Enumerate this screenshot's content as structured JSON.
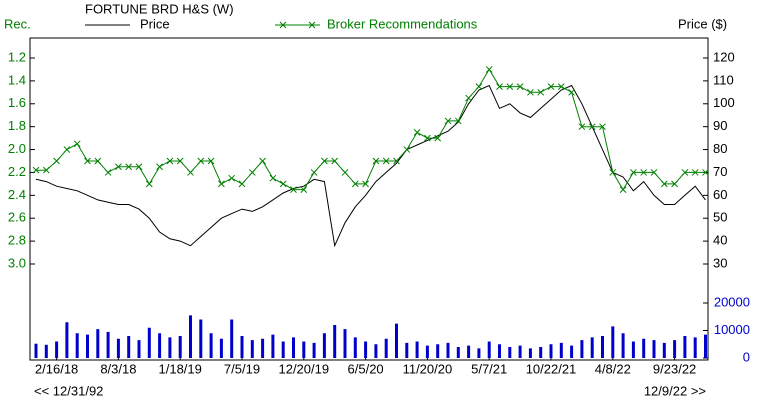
{
  "chart_data": [
    {
      "type": "line",
      "title": "FORTUNE BRD H&S (W)",
      "y_label": "Rec.",
      "y2_label": "Price ($)",
      "categories": [
        null,
        null,
        "2/16/18",
        null,
        null,
        null,
        null,
        null,
        "8/3/18",
        null,
        null,
        null,
        null,
        null,
        "1/18/19",
        null,
        null,
        null,
        null,
        null,
        "7/5/19",
        null,
        null,
        null,
        null,
        null,
        "12/20/19",
        null,
        null,
        null,
        null,
        null,
        "6/5/20",
        null,
        null,
        null,
        null,
        null,
        "11/20/20",
        null,
        null,
        null,
        null,
        null,
        "5/7/21",
        null,
        null,
        null,
        null,
        null,
        "10/22/21",
        null,
        null,
        null,
        null,
        null,
        "4/8/22",
        null,
        null,
        null,
        null,
        null,
        "9/23/22",
        null,
        null,
        null
      ],
      "series": [
        {
          "name": "Price",
          "color": "#000000",
          "axis": "y2",
          "values": [
            67,
            66,
            64,
            63,
            62,
            60,
            58,
            57,
            56,
            56,
            54,
            50,
            44,
            41,
            40,
            38,
            42,
            46,
            50,
            52,
            54,
            53,
            55,
            58,
            61,
            63,
            64,
            67,
            66,
            38,
            48,
            55,
            60,
            66,
            70,
            74,
            80,
            82,
            84,
            86,
            88,
            92,
            100,
            106,
            108,
            98,
            100,
            96,
            94,
            98,
            102,
            106,
            108,
            100,
            90,
            80,
            70,
            68,
            62,
            66,
            60,
            56,
            56,
            60,
            64,
            58
          ]
        },
        {
          "name": "Broker Recommendations",
          "color": "#008000",
          "marker": "x",
          "values": [
            2.18,
            2.18,
            2.1,
            2.0,
            1.95,
            2.1,
            2.1,
            2.2,
            2.15,
            2.15,
            2.15,
            2.3,
            2.15,
            2.1,
            2.1,
            2.2,
            2.1,
            2.1,
            2.3,
            2.25,
            2.3,
            2.2,
            2.1,
            2.25,
            2.3,
            2.35,
            2.35,
            2.2,
            2.1,
            2.1,
            2.2,
            2.3,
            2.3,
            2.1,
            2.1,
            2.1,
            2.0,
            1.85,
            1.9,
            1.9,
            1.75,
            1.75,
            1.55,
            1.45,
            1.3,
            1.45,
            1.45,
            1.45,
            1.5,
            1.5,
            1.45,
            1.45,
            1.5,
            1.8,
            1.8,
            1.8,
            2.2,
            2.35,
            2.2,
            2.2,
            2.2,
            2.3,
            2.3,
            2.2,
            2.2,
            2.2
          ]
        }
      ],
      "ylim": [
        3,
        1.2
      ],
      "yticks": [
        1.2,
        1.4,
        1.6,
        1.8,
        {
          "value": 2,
          "label": "2.0"
        },
        2.2,
        2.4,
        2.6,
        2.8,
        {
          "value": 3,
          "label": "3.0"
        }
      ],
      "y_color": "#008000",
      "y2lim": [
        30,
        120
      ],
      "y2ticks": [
        30,
        40,
        50,
        60,
        70,
        80,
        90,
        100,
        110,
        120
      ],
      "annotations": [
        "<< 12/31/92",
        "12/9/22 >>"
      ]
    },
    {
      "type": "bar",
      "color": "#0000cc",
      "values": [
        5200,
        4800,
        6000,
        13000,
        9000,
        8500,
        10500,
        9500,
        7000,
        8000,
        6500,
        11000,
        9000,
        7500,
        8000,
        15500,
        14000,
        9000,
        7000,
        14000,
        8000,
        6500,
        7000,
        8500,
        6000,
        7500,
        6000,
        5500,
        9000,
        12000,
        10500,
        7500,
        6000,
        5000,
        7000,
        12500,
        5500,
        6000,
        4500,
        5000,
        5500,
        4000,
        4500,
        3500,
        6000,
        5000,
        4000,
        4500,
        3500,
        4000,
        5000,
        5500,
        4500,
        6500,
        7500,
        8000,
        11500,
        9000,
        6000,
        7000,
        6500,
        5500,
        6500,
        8000,
        7500,
        8500
      ],
      "ylim": [
        0,
        20000
      ],
      "yticks": [
        0,
        10000,
        20000
      ]
    }
  ]
}
